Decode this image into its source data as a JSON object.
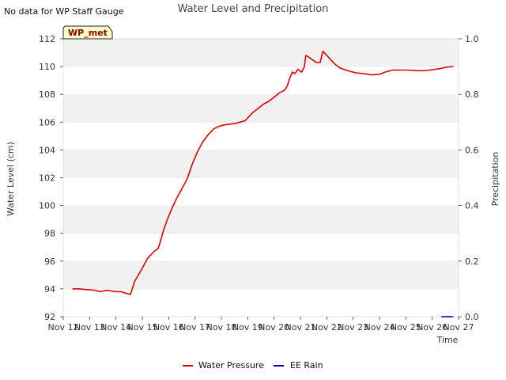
{
  "page": {
    "note": "No data for WP Staff Gauge",
    "site_badge": "WP_met"
  },
  "chart_data": {
    "type": "line",
    "title": "Water Level and Precipitation",
    "xlabel": "Time",
    "ylabel": "Water Level (cm)",
    "y2label": "Precipitation",
    "xlim": [
      0,
      15
    ],
    "ylim": [
      92,
      112
    ],
    "y2lim": [
      0.0,
      1.0
    ],
    "x_ticks": [
      "Nov 12",
      "Nov 13",
      "Nov 14",
      "Nov 15",
      "Nov 16",
      "Nov 17",
      "Nov 18",
      "Nov 19",
      "Nov 20",
      "Nov 21",
      "Nov 22",
      "Nov 23",
      "Nov 24",
      "Nov 25",
      "Nov 26",
      "Nov 27"
    ],
    "y_ticks": [
      "92",
      "94",
      "96",
      "98",
      "100",
      "102",
      "104",
      "106",
      "108",
      "110",
      "112"
    ],
    "y2_ticks": [
      "0.0",
      "0.2",
      "0.4",
      "0.6",
      "0.8",
      "1.0"
    ],
    "grid": "horizontal bands",
    "legend_position": "bottom-center",
    "series": [
      {
        "name": "Water Pressure",
        "color": "#dd0000",
        "axis": "left",
        "points": [
          [
            0.35,
            94.0
          ],
          [
            0.6,
            94.0
          ],
          [
            0.9,
            93.95
          ],
          [
            1.2,
            93.9
          ],
          [
            1.4,
            93.8
          ],
          [
            1.55,
            93.85
          ],
          [
            1.65,
            93.9
          ],
          [
            1.8,
            93.85
          ],
          [
            2.0,
            93.8
          ],
          [
            2.2,
            93.8
          ],
          [
            2.35,
            93.7
          ],
          [
            2.55,
            93.6
          ],
          [
            2.6,
            93.9
          ],
          [
            2.7,
            94.5
          ],
          [
            2.85,
            95.0
          ],
          [
            3.0,
            95.5
          ],
          [
            3.2,
            96.2
          ],
          [
            3.45,
            96.7
          ],
          [
            3.6,
            96.9
          ],
          [
            3.7,
            97.5
          ],
          [
            3.8,
            98.2
          ],
          [
            3.95,
            99.0
          ],
          [
            4.1,
            99.7
          ],
          [
            4.3,
            100.5
          ],
          [
            4.5,
            101.2
          ],
          [
            4.7,
            101.9
          ],
          [
            4.9,
            103.0
          ],
          [
            5.1,
            103.9
          ],
          [
            5.3,
            104.6
          ],
          [
            5.5,
            105.1
          ],
          [
            5.7,
            105.5
          ],
          [
            5.9,
            105.7
          ],
          [
            6.1,
            105.8
          ],
          [
            6.3,
            105.85
          ],
          [
            6.5,
            105.9
          ],
          [
            6.7,
            106.0
          ],
          [
            6.9,
            106.1
          ],
          [
            7.0,
            106.3
          ],
          [
            7.2,
            106.7
          ],
          [
            7.4,
            107.0
          ],
          [
            7.6,
            107.3
          ],
          [
            7.8,
            107.5
          ],
          [
            8.0,
            107.8
          ],
          [
            8.2,
            108.1
          ],
          [
            8.4,
            108.3
          ],
          [
            8.5,
            108.6
          ],
          [
            8.6,
            109.2
          ],
          [
            8.7,
            109.6
          ],
          [
            8.8,
            109.5
          ],
          [
            8.9,
            109.8
          ],
          [
            9.05,
            109.6
          ],
          [
            9.15,
            110.0
          ],
          [
            9.2,
            110.8
          ],
          [
            9.3,
            110.7
          ],
          [
            9.45,
            110.5
          ],
          [
            9.6,
            110.3
          ],
          [
            9.75,
            110.3
          ],
          [
            9.85,
            111.1
          ],
          [
            9.95,
            110.9
          ],
          [
            10.1,
            110.6
          ],
          [
            10.3,
            110.2
          ],
          [
            10.5,
            109.9
          ],
          [
            10.8,
            109.7
          ],
          [
            11.1,
            109.55
          ],
          [
            11.4,
            109.5
          ],
          [
            11.7,
            109.4
          ],
          [
            12.0,
            109.45
          ],
          [
            12.2,
            109.6
          ],
          [
            12.5,
            109.75
          ],
          [
            12.8,
            109.75
          ],
          [
            13.1,
            109.75
          ],
          [
            13.5,
            109.7
          ],
          [
            13.8,
            109.72
          ],
          [
            14.1,
            109.8
          ],
          [
            14.3,
            109.85
          ],
          [
            14.5,
            109.95
          ],
          [
            14.8,
            110.0
          ]
        ]
      },
      {
        "name": "EE Rain",
        "color": "#0000cc",
        "axis": "right",
        "points": [
          [
            14.35,
            0.0
          ],
          [
            14.8,
            0.0
          ]
        ]
      }
    ]
  }
}
